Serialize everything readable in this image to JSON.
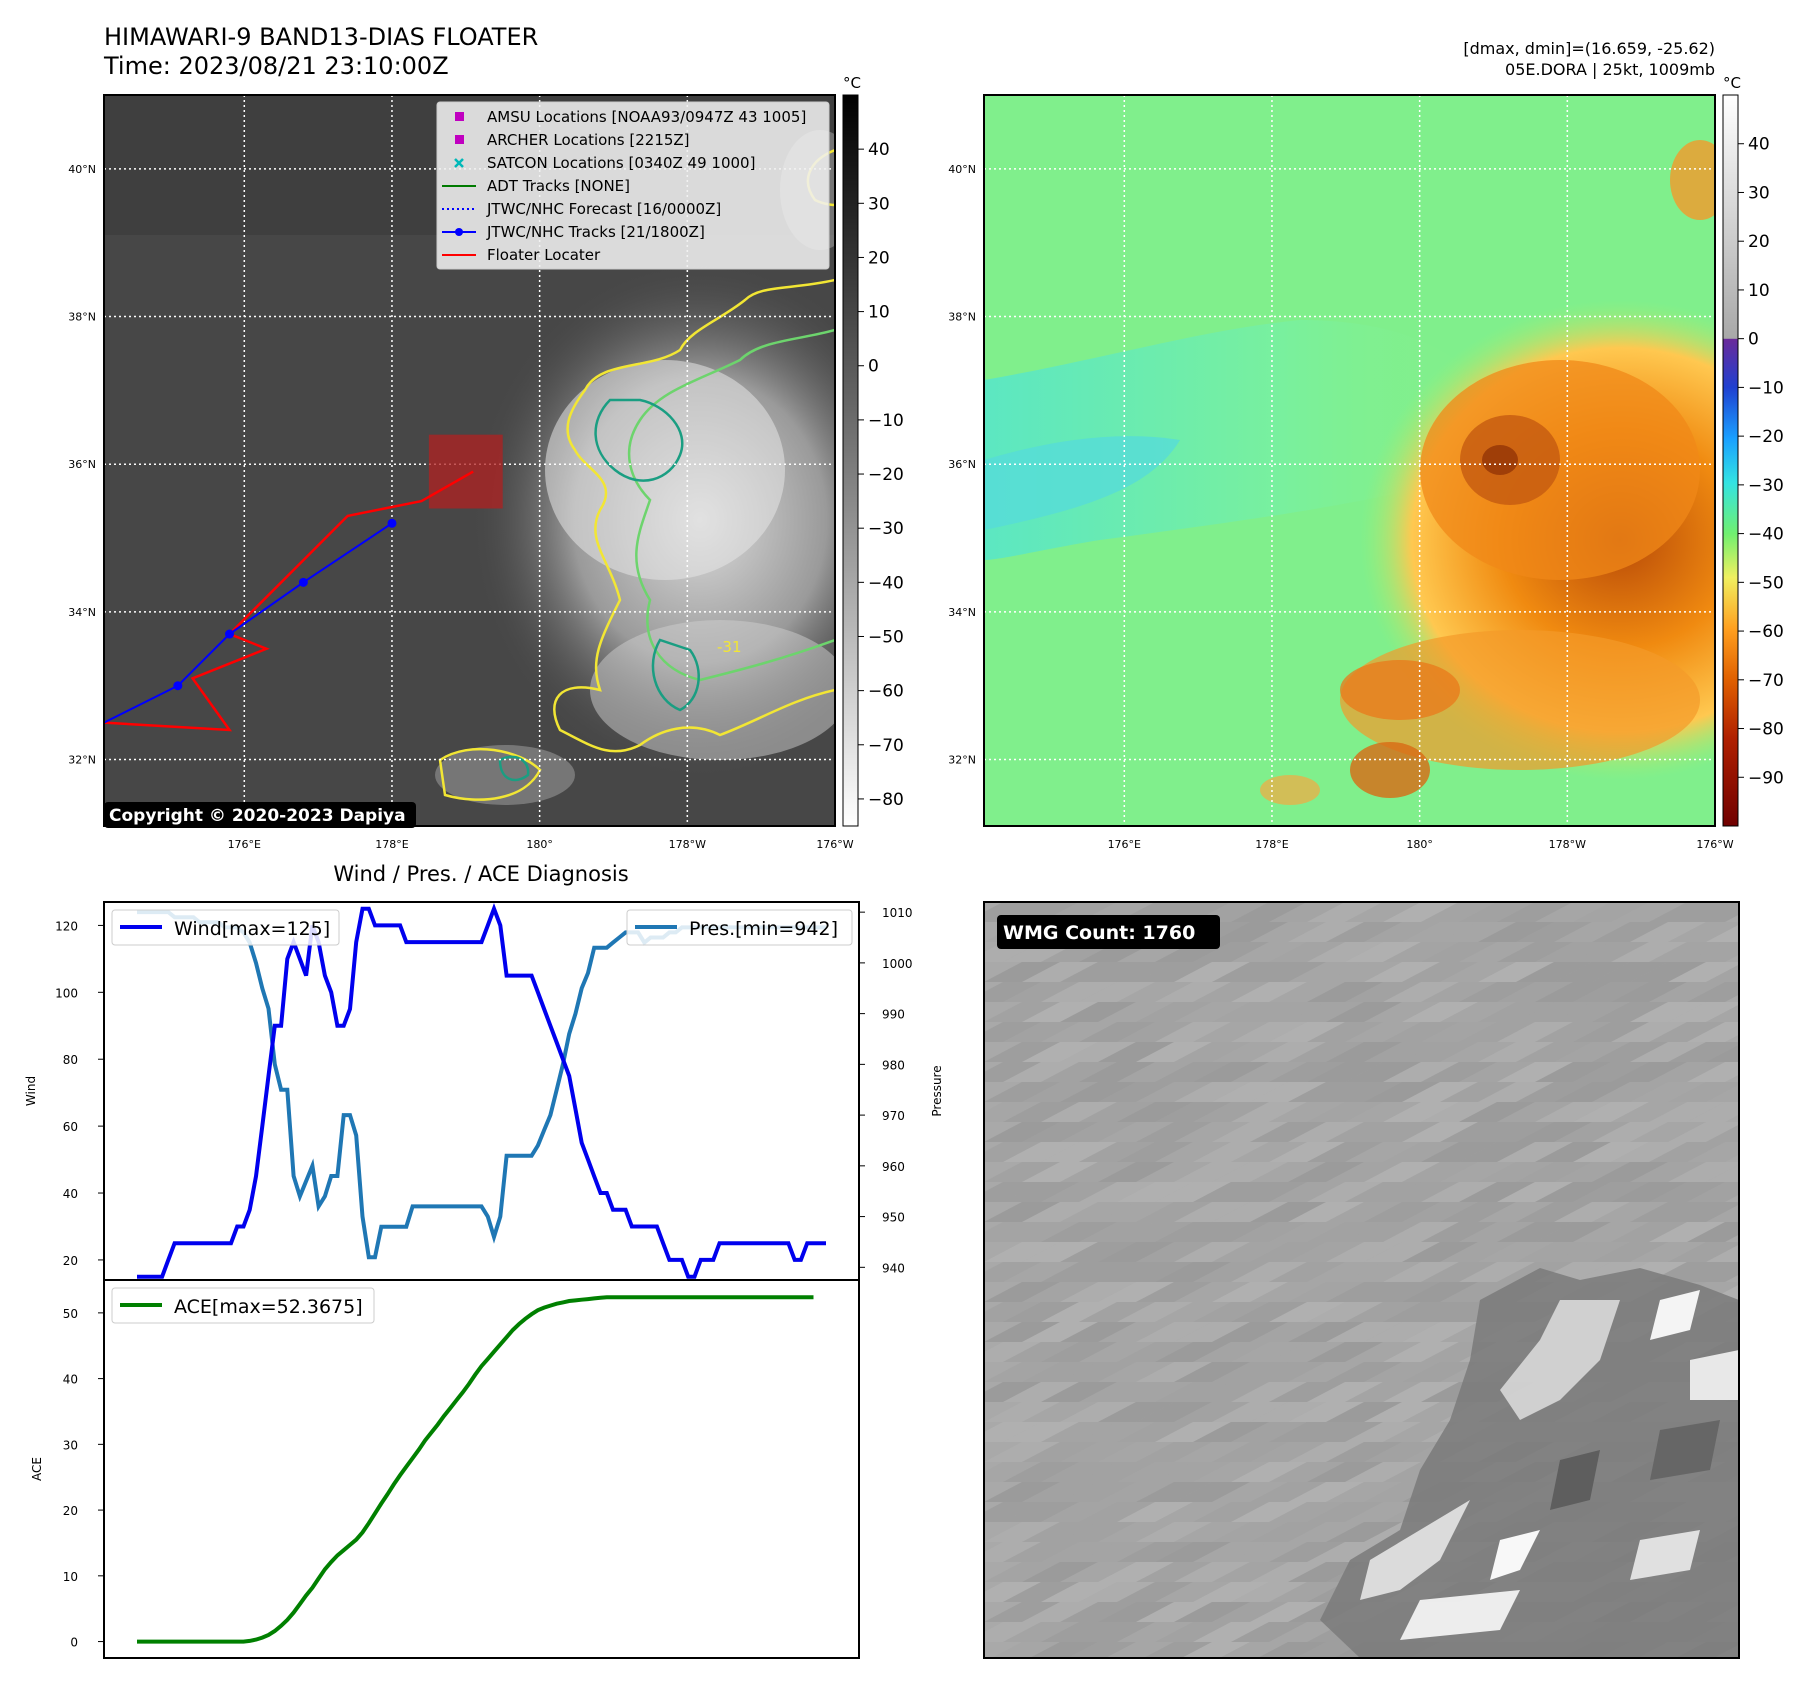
{
  "header": {
    "title": "HIMAWARI-9 BAND13-DIAS FLOATER",
    "time": "Time: 2023/08/21 23:10:00Z",
    "stats": "[dmax, dmin]=(16.659, -25.62)",
    "storm": "05E.DORA | 25kt, 1009mb"
  },
  "map_axes": {
    "lat_labels": [
      "40°N",
      "38°N",
      "36°N",
      "34°N",
      "32°N"
    ],
    "lat_values": [
      40,
      38,
      36,
      34,
      32
    ],
    "lon_labels": [
      "176°E",
      "178°E",
      "180°",
      "178°W",
      "176°W"
    ],
    "lon_values": [
      176,
      178,
      180,
      182,
      184
    ],
    "lat_range": [
      31.1,
      41.0
    ],
    "lon_range": [
      174.1,
      184.0
    ]
  },
  "ir_panel": {
    "colorbar_unit": "°C",
    "colorbar_ticks": [
      "40",
      "30",
      "20",
      "10",
      "0",
      "−10",
      "−20",
      "−30",
      "−40",
      "−50",
      "−60",
      "−70",
      "−80"
    ],
    "colorbar_range": [
      -85,
      50
    ],
    "copyright": "Copyright © 2020-2023 Dapiya",
    "contour_label": "-31",
    "legend": [
      {
        "label": "AMSU Locations [NOAA93/0947Z 43 1005]",
        "marker": "square",
        "color": "#c000c0"
      },
      {
        "label": "ARCHER Locations [2215Z]",
        "marker": "square",
        "color": "#c000c0"
      },
      {
        "label": "SATCON Locations [0340Z 49 1000]",
        "marker": "x",
        "color": "#00b8b8"
      },
      {
        "label": "ADT Tracks [NONE]",
        "marker": "line",
        "color": "#007a00"
      },
      {
        "label": "JTWC/NHC Forecast [16/0000Z]",
        "marker": "dotted",
        "color": "#0000ff"
      },
      {
        "label": "JTWC/NHC Tracks [21/1800Z]",
        "marker": "line-dot",
        "color": "#0000ff"
      },
      {
        "label": "Floater Locater",
        "marker": "line",
        "color": "#ff0000"
      }
    ],
    "jtwc_track": [
      [
        174.1,
        32.5
      ],
      [
        175.1,
        33.0
      ],
      [
        175.8,
        33.7
      ],
      [
        176.8,
        34.4
      ],
      [
        178.0,
        35.2
      ]
    ],
    "floater_track": [
      [
        174.1,
        32.5
      ],
      [
        175.8,
        32.4
      ],
      [
        175.3,
        33.1
      ],
      [
        176.3,
        33.5
      ],
      [
        175.8,
        33.7
      ],
      [
        177.4,
        35.3
      ],
      [
        178.4,
        35.5
      ],
      [
        179.1,
        35.9
      ]
    ],
    "floater_box": {
      "lon": [
        178.5,
        179.5
      ],
      "lat": [
        35.4,
        36.4
      ]
    }
  },
  "enhanced_panel": {
    "colorbar_unit": "°C",
    "colorbar_ticks": [
      "40",
      "30",
      "20",
      "10",
      "0",
      "−10",
      "−20",
      "−30",
      "−40",
      "−50",
      "−60",
      "−70",
      "−80",
      "−90"
    ],
    "colorbar_range": [
      -100,
      50
    ]
  },
  "diagnosis": {
    "title": "Wind / Pres. / ACE Diagnosis",
    "wind_ylabel": "Wind",
    "pres_ylabel": "Pressure",
    "ace_ylabel": "ACE",
    "wind_legend": "Wind[max=125]",
    "pres_legend": "Pres.[min=942]",
    "ace_legend": "ACE[max=52.3675]",
    "wind_color": "#0000ee",
    "pres_color": "#1f77b4",
    "ace_color": "#008000"
  },
  "chart_data": [
    {
      "type": "line",
      "title": "Wind / Pres. / ACE Diagnosis",
      "ylabel": "Wind",
      "ylim": [
        14,
        127
      ],
      "yticks": [
        20,
        40,
        60,
        80,
        100,
        120
      ],
      "series": [
        {
          "name": "Wind[max=125]",
          "values": [
            15,
            15,
            15,
            15,
            15,
            20,
            25,
            25,
            25,
            25,
            25,
            25,
            25,
            25,
            25,
            25,
            30,
            30,
            35,
            45,
            60,
            75,
            90,
            90,
            110,
            115,
            110,
            105,
            120,
            115,
            105,
            100,
            90,
            90,
            95,
            115,
            125,
            125,
            120,
            120,
            120,
            120,
            120,
            115,
            115,
            115,
            115,
            115,
            115,
            115,
            115,
            115,
            115,
            115,
            115,
            115,
            120,
            125,
            120,
            105,
            105,
            105,
            105,
            105,
            100,
            95,
            90,
            85,
            80,
            75,
            65,
            55,
            50,
            45,
            40,
            40,
            35,
            35,
            35,
            30,
            30,
            30,
            30,
            30,
            25,
            20,
            20,
            20,
            15,
            15,
            20,
            20,
            20,
            25,
            25,
            25,
            25,
            25,
            25,
            25,
            25,
            25,
            25,
            25,
            25,
            20,
            20,
            25,
            25,
            25,
            25
          ]
        }
      ]
    },
    {
      "type": "line",
      "ylabel": "Pressure",
      "ylim": [
        937.5,
        1012
      ],
      "yticks": [
        940,
        950,
        960,
        970,
        980,
        990,
        1000,
        1010
      ],
      "series": [
        {
          "name": "Pres.[min=942]",
          "values": [
            1010,
            1010,
            1010,
            1010,
            1010,
            1010,
            1009,
            1009,
            1009,
            1009,
            1008,
            1008,
            1008,
            1008,
            1007,
            1007,
            1007,
            1006,
            1004,
            1000,
            995,
            991,
            980,
            975,
            975,
            958,
            954,
            957,
            960,
            952,
            954,
            958,
            958,
            970,
            970,
            966,
            950,
            942,
            942,
            948,
            948,
            948,
            948,
            948,
            952,
            952,
            952,
            952,
            952,
            952,
            952,
            952,
            952,
            952,
            952,
            952,
            950,
            946,
            950,
            962,
            962,
            962,
            962,
            962,
            964,
            967,
            970,
            975,
            980,
            986,
            990,
            995,
            998,
            1003,
            1003,
            1003,
            1004,
            1005,
            1006,
            1006,
            1006,
            1004,
            1005,
            1005,
            1005,
            1006,
            1006,
            1007,
            1007,
            1007,
            1007,
            1007,
            1007,
            1007,
            1007,
            1007,
            1007,
            1007,
            1007,
            1007,
            1007,
            1007,
            1007,
            1007,
            1007,
            1007,
            1007,
            1007,
            1007,
            1007,
            1007
          ]
        }
      ]
    },
    {
      "type": "line",
      "ylabel": "ACE",
      "ylim": [
        -2.5,
        55
      ],
      "yticks": [
        0,
        10,
        20,
        30,
        40,
        50
      ],
      "series": [
        {
          "name": "ACE[max=52.3675]",
          "values": [
            0,
            0,
            0,
            0,
            0,
            0,
            0,
            0,
            0,
            0,
            0,
            0,
            0,
            0,
            0,
            0,
            0,
            0,
            0.1,
            0.3,
            0.6,
            1.0,
            1.6,
            2.4,
            3.3,
            4.4,
            5.7,
            7.0,
            8.2,
            9.6,
            11.0,
            12.1,
            13.1,
            13.9,
            14.7,
            15.5,
            16.6,
            18.0,
            19.5,
            21.0,
            22.4,
            23.9,
            25.3,
            26.6,
            27.9,
            29.2,
            30.6,
            31.8,
            33.0,
            34.3,
            35.5,
            36.7,
            37.9,
            39.2,
            40.6,
            41.9,
            43.0,
            44.1,
            45.2,
            46.3,
            47.4,
            48.3,
            49.1,
            49.8,
            50.4,
            50.8,
            51.1,
            51.4,
            51.6,
            51.8,
            51.9,
            52.0,
            52.1,
            52.2,
            52.3,
            52.3675,
            52.3675,
            52.3675,
            52.3675,
            52.3675,
            52.3675,
            52.3675,
            52.3675,
            52.3675,
            52.3675,
            52.3675,
            52.3675,
            52.3675,
            52.3675,
            52.3675,
            52.3675,
            52.3675,
            52.3675,
            52.3675,
            52.3675,
            52.3675,
            52.3675,
            52.3675,
            52.3675,
            52.3675,
            52.3675,
            52.3675,
            52.3675,
            52.3675,
            52.3675,
            52.3675,
            52.3675,
            52.3675,
            52.3675
          ]
        }
      ]
    }
  ],
  "wmg_panel": {
    "label": "WMG Count: 1760"
  }
}
